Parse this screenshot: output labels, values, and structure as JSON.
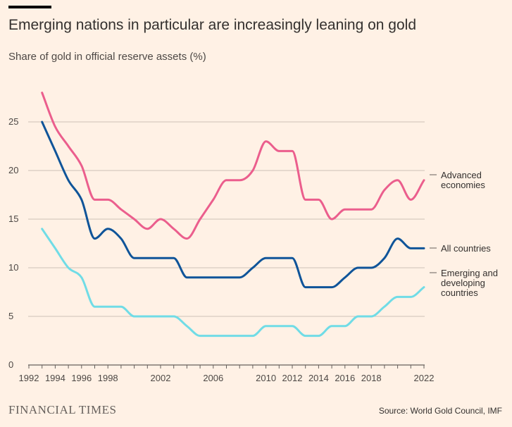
{
  "header": {
    "title": "Emerging nations in particular are increasingly leaning on gold",
    "subtitle": "Share of gold in official reserve assets (%)"
  },
  "footer": {
    "brand": "FINANCIAL TIMES",
    "source": "Source: World Gold Council, IMF"
  },
  "chart_data": {
    "type": "line",
    "title": "Emerging nations in particular are increasingly leaning on gold",
    "subtitle": "Share of gold in official reserve assets (%)",
    "xlabel": "",
    "ylabel": "",
    "xlim": [
      1992,
      2022
    ],
    "ylim": [
      0,
      28
    ],
    "y_ticks": [
      0,
      5,
      10,
      15,
      20,
      25
    ],
    "x_ticks": [
      1992,
      1994,
      1996,
      1998,
      2002,
      2006,
      2010,
      2012,
      2014,
      2016,
      2018,
      2022
    ],
    "grid": "horizontal",
    "legend": "right, labels at line ends",
    "x": [
      1993,
      1994,
      1995,
      1996,
      1997,
      1998,
      1999,
      2000,
      2001,
      2002,
      2003,
      2004,
      2005,
      2006,
      2007,
      2008,
      2009,
      2010,
      2011,
      2012,
      2013,
      2014,
      2015,
      2016,
      2017,
      2018,
      2019,
      2020,
      2021,
      2022
    ],
    "series": [
      {
        "name": "Advanced economies",
        "legend_lines": [
          "Advanced",
          "economies"
        ],
        "color": "#eb5e8d",
        "values": [
          28,
          24.5,
          22.5,
          20.5,
          17,
          17,
          16,
          15,
          14,
          15,
          14,
          13,
          15,
          17,
          19,
          19,
          20,
          23,
          22,
          22,
          17,
          17,
          15,
          16,
          16,
          16,
          18,
          19,
          17,
          19
        ]
      },
      {
        "name": "All countries",
        "legend_lines": [
          "All countries"
        ],
        "color": "#0f5499",
        "values": [
          25,
          22,
          19,
          17,
          13,
          14,
          13,
          11,
          11,
          11,
          11,
          9,
          9,
          9,
          9,
          9,
          10,
          11,
          11,
          11,
          8,
          8,
          8,
          9,
          10,
          10,
          11,
          13,
          12,
          12
        ]
      },
      {
        "name": "Emerging and developing countries",
        "legend_lines": [
          "Emerging and",
          "developing",
          "countries"
        ],
        "color": "#70dce6",
        "values": [
          14,
          12,
          10,
          9,
          6,
          6,
          6,
          5,
          5,
          5,
          5,
          4,
          3,
          3,
          3,
          3,
          3,
          4,
          4,
          4,
          3,
          3,
          4,
          4,
          5,
          5,
          6,
          7,
          7,
          8
        ]
      }
    ]
  }
}
